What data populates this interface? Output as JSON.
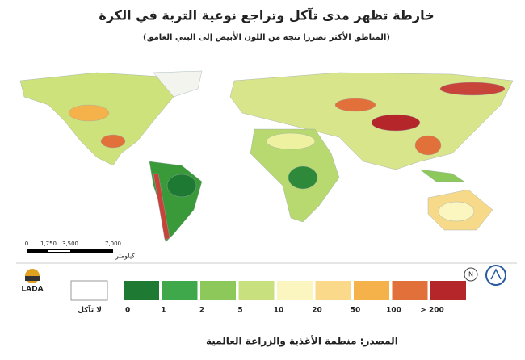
{
  "header": {
    "title": "خارطة تظهر مدى تآكل وتراجع نوعية التربة في الكرة",
    "subtitle": "(المناطق الأكثر تضررا تتجه من اللون الأبيض إلى البني الغامق)"
  },
  "scale": {
    "ticks": [
      "0",
      "1,750",
      "3,500",
      "7,000"
    ],
    "unit": "كيلومتر"
  },
  "logos": {
    "left": "LADA",
    "north": "N"
  },
  "legend": {
    "no_erosion": "لا تآكل",
    "labels": [
      "0",
      "1",
      "2",
      "5",
      "10",
      "20",
      "50",
      "100",
      "> 200"
    ],
    "colors": [
      "#1e7a32",
      "#3fa84a",
      "#8cc95a",
      "#c9e07e",
      "#fbf6c0",
      "#fbd98a",
      "#f5b24a",
      "#e2703a",
      "#b5262a"
    ]
  },
  "source": "المصدر: منظمة الأغذية والزراعة العالمية"
}
